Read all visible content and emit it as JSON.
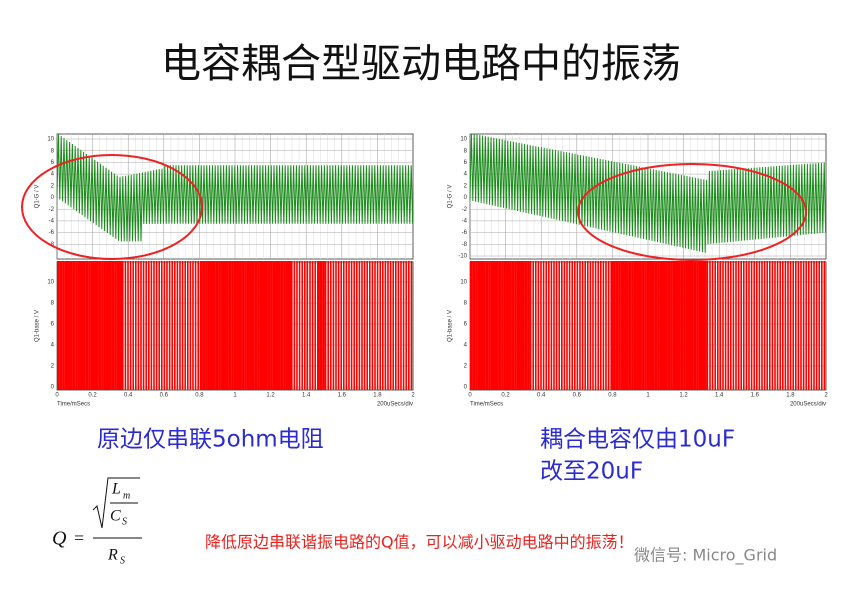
{
  "title": "电容耦合型驱动电路中的振荡",
  "plots": [
    {
      "top": {
        "y_label": "Q1-G / V",
        "yticks": [
          "10",
          "8",
          "6",
          "4",
          "2",
          "0",
          "-2",
          "-4",
          "-6",
          "-8"
        ]
      },
      "bottom": {
        "y_label": "Q1-base / V",
        "yticks": [
          "10",
          "8",
          "6",
          "4",
          "2",
          "0"
        ]
      },
      "xticks": [
        "0",
        "0.2",
        "0.4",
        "0.6",
        "0.8",
        "1",
        "1.2",
        "1.4",
        "1.6",
        "1.8",
        "2"
      ],
      "x_label": "Time/mSecs",
      "scale_label": "200uSecs/div",
      "caption": [
        "原边仅串联5ohm电阻"
      ]
    },
    {
      "top": {
        "y_label": "Q1-G / V",
        "yticks": [
          "10",
          "8",
          "6",
          "4",
          "2",
          "0",
          "-2",
          "-4",
          "-6",
          "-8",
          "-10"
        ]
      },
      "bottom": {
        "y_label": "Q1-base / V",
        "yticks": [
          "10",
          "8",
          "6",
          "4",
          "2",
          "0"
        ]
      },
      "xticks": [
        "0",
        "0.2",
        "0.4",
        "0.6",
        "0.8",
        "1",
        "1.2",
        "1.4",
        "1.6",
        "1.8",
        "2"
      ],
      "x_label": "Time/mSecs",
      "scale_label": "200uSecs/div",
      "caption": [
        "耦合电容仅由10uF",
        "改至20uF"
      ]
    }
  ],
  "formula": {
    "lhs": "Q",
    "eq": "=",
    "num": "L",
    "num_sub": "m",
    "den": "C",
    "den_sub": "S",
    "div": "R",
    "div_sub": "S"
  },
  "note": "降低原边串联谐振电路的Q值，可以减小驱动电路中的振荡！",
  "watermark": "微信号: Micro_Grid"
}
